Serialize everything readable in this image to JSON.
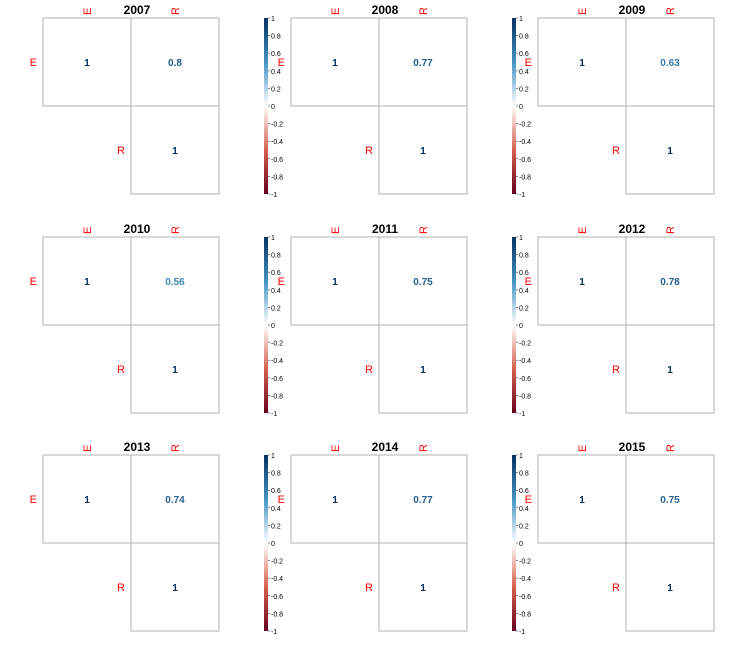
{
  "chart_data": [
    {
      "type": "heatmap",
      "title": "2007",
      "variables": [
        "E",
        "R"
      ],
      "matrix": [
        [
          1,
          0.8
        ],
        [
          null,
          1
        ]
      ],
      "cell_labels": [
        [
          "1",
          "0.8"
        ],
        [
          "",
          "1"
        ]
      ],
      "color_range": [
        -1,
        1
      ],
      "colorbar_ticks": [
        "1",
        "0.8",
        "0.6",
        "0.4",
        "0.2",
        "0",
        "-0.2",
        "-0.4",
        "-0.6",
        "-0.8",
        "-1"
      ]
    },
    {
      "type": "heatmap",
      "title": "2008",
      "variables": [
        "E",
        "R"
      ],
      "matrix": [
        [
          1,
          0.77
        ],
        [
          null,
          1
        ]
      ],
      "cell_labels": [
        [
          "1",
          "0.77"
        ],
        [
          "",
          "1"
        ]
      ],
      "color_range": [
        -1,
        1
      ],
      "colorbar_ticks": [
        "1",
        "0.8",
        "0.6",
        "0.4",
        "0.2",
        "0",
        "-0.2",
        "-0.4",
        "-0.6",
        "-0.8",
        "-1"
      ]
    },
    {
      "type": "heatmap",
      "title": "2009",
      "variables": [
        "E",
        "R"
      ],
      "matrix": [
        [
          1,
          0.63
        ],
        [
          null,
          1
        ]
      ],
      "cell_labels": [
        [
          "1",
          "0.63"
        ],
        [
          "",
          "1"
        ]
      ],
      "color_range": [
        -1,
        1
      ],
      "colorbar_ticks": [
        "1",
        "0.8",
        "0.6",
        "0.4",
        "0.2",
        "0",
        "-0.2",
        "-0.4",
        "-0.6",
        "-0.8",
        "-1"
      ]
    },
    {
      "type": "heatmap",
      "title": "2010",
      "variables": [
        "E",
        "R"
      ],
      "matrix": [
        [
          1,
          0.56
        ],
        [
          null,
          1
        ]
      ],
      "cell_labels": [
        [
          "1",
          "0.56"
        ],
        [
          "",
          "1"
        ]
      ],
      "color_range": [
        -1,
        1
      ],
      "colorbar_ticks": [
        "1",
        "0.8",
        "0.6",
        "0.4",
        "0.2",
        "0",
        "-0.2",
        "-0.4",
        "-0.6",
        "-0.8",
        "-1"
      ]
    },
    {
      "type": "heatmap",
      "title": "2011",
      "variables": [
        "E",
        "R"
      ],
      "matrix": [
        [
          1,
          0.75
        ],
        [
          null,
          1
        ]
      ],
      "cell_labels": [
        [
          "1",
          "0.75"
        ],
        [
          "",
          "1"
        ]
      ],
      "color_range": [
        -1,
        1
      ],
      "colorbar_ticks": [
        "1",
        "0.8",
        "0.6",
        "0.4",
        "0.2",
        "0",
        "-0.2",
        "-0.4",
        "-0.6",
        "-0.8",
        "-1"
      ]
    },
    {
      "type": "heatmap",
      "title": "2012",
      "variables": [
        "E",
        "R"
      ],
      "matrix": [
        [
          1,
          0.78
        ],
        [
          null,
          1
        ]
      ],
      "cell_labels": [
        [
          "1",
          "0.78"
        ],
        [
          "",
          "1"
        ]
      ],
      "color_range": [
        -1,
        1
      ],
      "colorbar_ticks": [
        "1",
        "0.8",
        "0.6",
        "0.4",
        "0.2",
        "0",
        "-0.2",
        "-0.4",
        "-0.6",
        "-0.8",
        "-1"
      ]
    },
    {
      "type": "heatmap",
      "title": "2013",
      "variables": [
        "E",
        "R"
      ],
      "matrix": [
        [
          1,
          0.74
        ],
        [
          null,
          1
        ]
      ],
      "cell_labels": [
        [
          "1",
          "0.74"
        ],
        [
          "",
          "1"
        ]
      ],
      "color_range": [
        -1,
        1
      ],
      "colorbar_ticks": [
        "1",
        "0.8",
        "0.6",
        "0.4",
        "0.2",
        "0",
        "-0.2",
        "-0.4",
        "-0.6",
        "-0.8",
        "-1"
      ]
    },
    {
      "type": "heatmap",
      "title": "2014",
      "variables": [
        "E",
        "R"
      ],
      "matrix": [
        [
          1,
          0.77
        ],
        [
          null,
          1
        ]
      ],
      "cell_labels": [
        [
          "1",
          "0.77"
        ],
        [
          "",
          "1"
        ]
      ],
      "color_range": [
        -1,
        1
      ],
      "colorbar_ticks": [
        "1",
        "0.8",
        "0.6",
        "0.4",
        "0.2",
        "0",
        "-0.2",
        "-0.4",
        "-0.6",
        "-0.8",
        "-1"
      ]
    },
    {
      "type": "heatmap",
      "title": "2015",
      "variables": [
        "E",
        "R"
      ],
      "matrix": [
        [
          1,
          0.75
        ],
        [
          null,
          1
        ]
      ],
      "cell_labels": [
        [
          "1",
          "0.75"
        ],
        [
          "",
          "1"
        ]
      ],
      "color_range": [
        -1,
        1
      ],
      "colorbar_ticks": [
        "1",
        "0.8",
        "0.6",
        "0.4",
        "0.2",
        "0",
        "-0.2",
        "-0.4",
        "-0.6",
        "-0.8",
        "-1"
      ]
    }
  ],
  "colors": {
    "label": "#ff0000",
    "grid": "#b0b0b0",
    "title": "#000000",
    "negative_end": "#67001f",
    "negative_mid": "#d6604d",
    "neutral": "#ffffff",
    "positive_mid": "#4393c3",
    "positive_end": "#053061"
  }
}
